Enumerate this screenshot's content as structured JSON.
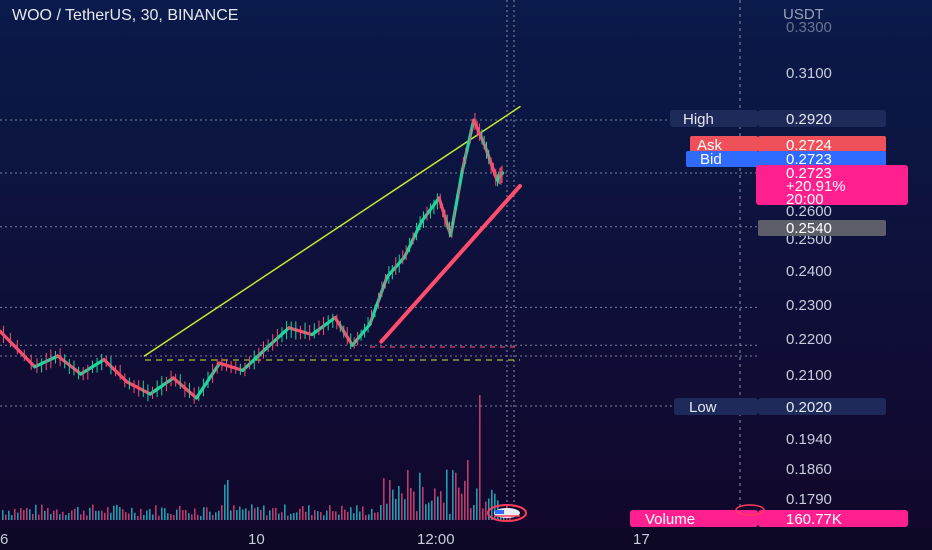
{
  "header": {
    "title": "WOO / TetherUS, 30, BINANCE"
  },
  "price_axis": {
    "currency_label": "USDT",
    "ticks": [
      "0.3300",
      "0.3100",
      "0.2600",
      "0.2500",
      "0.2400",
      "0.2300",
      "0.2200",
      "0.2100",
      "0.1940",
      "0.1860",
      "0.1790"
    ]
  },
  "time_axis": {
    "ticks": [
      "6",
      "10",
      "12:00",
      "17"
    ]
  },
  "labels": {
    "high": {
      "label": "High",
      "value": "0.2920"
    },
    "ask": {
      "label": "Ask",
      "value": "0.2724"
    },
    "bid": {
      "label": "Bid",
      "value": "0.2723"
    },
    "last": {
      "price": "0.2723",
      "change": "+20.91%",
      "countdown": "20:00"
    },
    "level": {
      "value": "0.2540"
    },
    "low": {
      "label": "Low",
      "value": "0.2020"
    },
    "volume": {
      "label": "Volume",
      "value": "160.77K"
    }
  },
  "colors": {
    "background_top": "#0a1a4a",
    "background_bottom": "#12062a",
    "up": "#22d39a",
    "down": "#f4506e",
    "trend_upper": "#c8e830",
    "trend_lower": "#ff4d6d",
    "last_price": "#ff1f8f",
    "ask": "#f0505a",
    "bid": "#2f6bff",
    "label_bg": "#1d2a5a"
  },
  "chart_data": {
    "type": "line",
    "symbol": "WOO / TetherUS",
    "interval": "30",
    "exchange": "BINANCE",
    "price_path": [
      {
        "t": 0,
        "p": 0.222
      },
      {
        "t": 6,
        "p": 0.212
      },
      {
        "t": 10,
        "p": 0.215
      },
      {
        "t": 14,
        "p": 0.21
      },
      {
        "t": 18,
        "p": 0.214
      },
      {
        "t": 22,
        "p": 0.208
      },
      {
        "t": 26,
        "p": 0.205
      },
      {
        "t": 30,
        "p": 0.209
      },
      {
        "t": 34,
        "p": 0.204
      },
      {
        "t": 38,
        "p": 0.213
      },
      {
        "t": 42,
        "p": 0.211
      },
      {
        "t": 46,
        "p": 0.217
      },
      {
        "t": 50,
        "p": 0.223
      },
      {
        "t": 54,
        "p": 0.221
      },
      {
        "t": 58,
        "p": 0.226
      },
      {
        "t": 61,
        "p": 0.218
      },
      {
        "t": 64,
        "p": 0.224
      },
      {
        "t": 67,
        "p": 0.238
      },
      {
        "t": 70,
        "p": 0.244
      },
      {
        "t": 73,
        "p": 0.256
      },
      {
        "t": 76,
        "p": 0.264
      },
      {
        "t": 78,
        "p": 0.251
      },
      {
        "t": 80,
        "p": 0.273
      },
      {
        "t": 82,
        "p": 0.292
      },
      {
        "t": 84,
        "p": 0.282
      },
      {
        "t": 86,
        "p": 0.27
      },
      {
        "t": 87,
        "p": 0.2723
      }
    ],
    "trendlines": [
      {
        "name": "upper",
        "from": {
          "t": 25,
          "p": 0.215
        },
        "to": {
          "t": 90,
          "p": 0.297
        }
      },
      {
        "name": "lower",
        "from": {
          "t": 66,
          "p": 0.219
        },
        "to": {
          "t": 90,
          "p": 0.268
        }
      }
    ],
    "horizontal_levels": [
      0.292,
      0.2723,
      0.254,
      0.229,
      0.218,
      0.215,
      0.202
    ],
    "volume_last": "160.77K",
    "ylim": [
      0.179,
      0.33
    ],
    "grid": false,
    "legend": "none"
  }
}
